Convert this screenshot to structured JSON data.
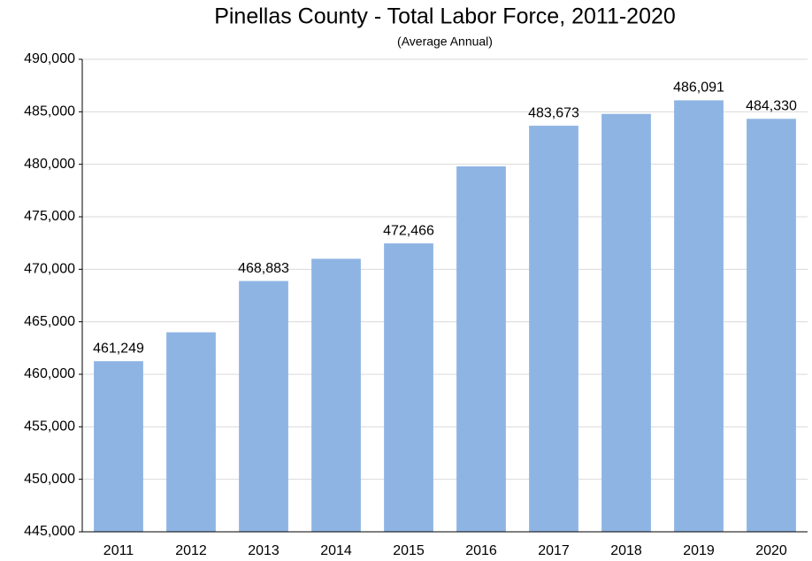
{
  "chart_data": {
    "type": "bar",
    "title": "Pinellas County - Total Labor Force, 2011-2020",
    "subtitle": "(Average Annual)",
    "categories": [
      "2011",
      "2012",
      "2013",
      "2014",
      "2015",
      "2016",
      "2017",
      "2018",
      "2019",
      "2020"
    ],
    "values": [
      461249,
      464000,
      468883,
      471000,
      472466,
      479800,
      483673,
      484800,
      486091,
      484330
    ],
    "value_labels": [
      "461,249",
      null,
      "468,883",
      null,
      "472,466",
      null,
      "483,673",
      null,
      "486,091",
      "484,330"
    ],
    "color": "#8eb4e3",
    "ylim": [
      445000,
      490000
    ],
    "yticks": [
      {
        "value": 445000,
        "label": "445,000"
      },
      {
        "value": 450000,
        "label": "450,000"
      },
      {
        "value": 455000,
        "label": "455,000"
      },
      {
        "value": 460000,
        "label": "460,000"
      },
      {
        "value": 465000,
        "label": "465,000"
      },
      {
        "value": 470000,
        "label": "470,000"
      },
      {
        "value": 475000,
        "label": "475,000"
      },
      {
        "value": 480000,
        "label": "480,000"
      },
      {
        "value": 485000,
        "label": "485,000"
      },
      {
        "value": 490000,
        "label": "490,000"
      }
    ],
    "grid": true
  }
}
